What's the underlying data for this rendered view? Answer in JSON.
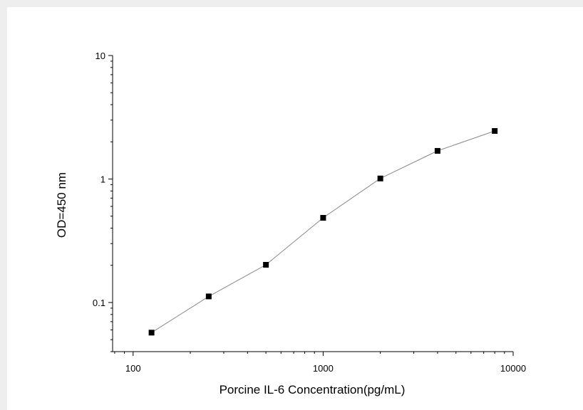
{
  "chart_data": {
    "type": "scatter",
    "title": "",
    "xlabel": "Porcine IL-6 Concentration(pg/mL)",
    "ylabel": "OD=450 nm",
    "xscale": "log",
    "yscale": "log",
    "xlim": [
      78,
      10000
    ],
    "ylim": [
      0.04,
      10
    ],
    "grid": false,
    "x_ticks": [
      {
        "value": 100,
        "label": "100"
      },
      {
        "value": 1000,
        "label": "1000"
      },
      {
        "value": 10000,
        "label": "10000"
      }
    ],
    "y_ticks": [
      {
        "value": 0.1,
        "label": "0.1"
      },
      {
        "value": 1,
        "label": "1"
      },
      {
        "value": 10,
        "label": "10"
      }
    ],
    "series": [
      {
        "x": [
          125,
          250,
          500,
          1000,
          2000,
          4000,
          8000
        ],
        "y": [
          0.057,
          0.112,
          0.202,
          0.485,
          1.01,
          1.69,
          2.45
        ],
        "marker": "square",
        "line": "connected",
        "marker_color": "#000000",
        "line_color": "#888888"
      }
    ]
  }
}
